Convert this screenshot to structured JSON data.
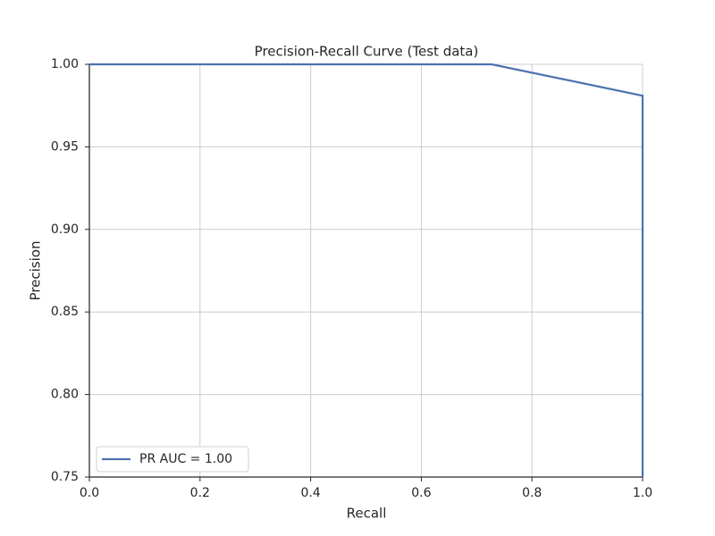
{
  "chart_data": {
    "type": "line",
    "title": "Precision-Recall Curve (Test data)",
    "x_label": "Recall",
    "y_label": "Precision",
    "series": [
      {
        "name": "PR AUC = 1.00",
        "color": "#4c72b0",
        "x": [
          0,
          0.727,
          1,
          1
        ],
        "values": [
          1,
          1,
          0.981,
          0.75
        ]
      }
    ],
    "xlim": [
      0,
      1
    ],
    "xticks": [
      {
        "value": 0,
        "label": "0.0"
      },
      0.2,
      0.4,
      0.6,
      0.8,
      {
        "value": 1,
        "label": "1.0"
      }
    ],
    "ylim": [
      0.75,
      1
    ],
    "yticks": [
      0.75,
      {
        "value": 0.8,
        "label": "0.80"
      },
      0.85,
      {
        "value": 0.9,
        "label": "0.90"
      },
      0.95,
      {
        "value": 1,
        "label": "1.00"
      }
    ],
    "grid": true,
    "legend": "lower left"
  }
}
